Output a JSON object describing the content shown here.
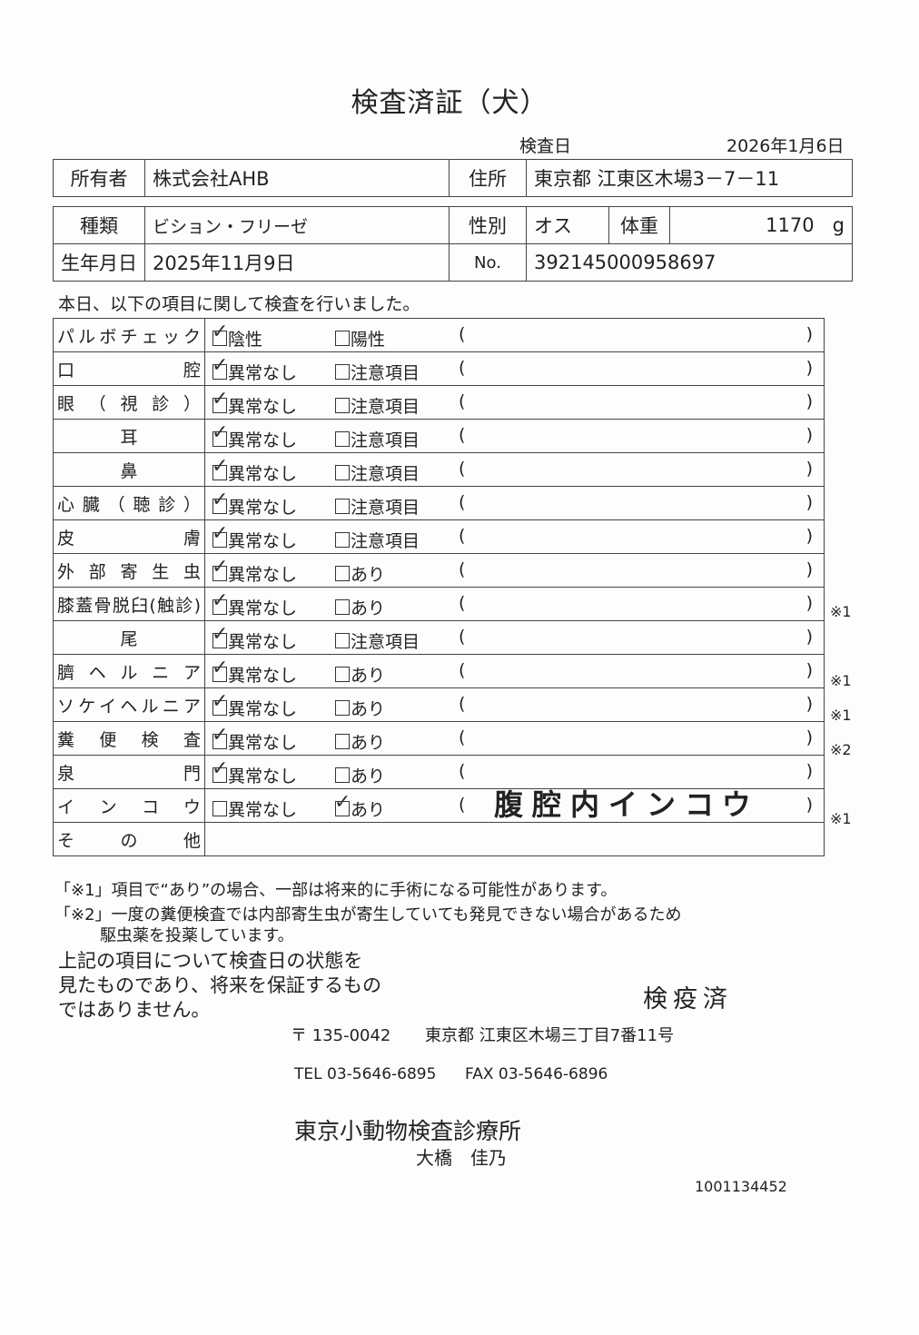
{
  "title": "検査済証（犬）",
  "exam_date": {
    "label": "検査日",
    "value": "2026年1月6日"
  },
  "owner": {
    "label": "所有者",
    "value": "株式会社AHB",
    "address_label": "住所",
    "address": "東京都 江東区木場3－7－11"
  },
  "animal": {
    "breed_label": "種類",
    "breed": "ビション・フリーゼ",
    "sex_label": "性別",
    "sex": "オス",
    "weight_label": "体重",
    "weight": "1170",
    "weight_unit": "g",
    "dob_label": "生年月日",
    "dob": "2025年11月9日",
    "no_label": "No.",
    "no": "392145000958697"
  },
  "intro": "本日、以下の項目に関して検査を行いました。",
  "items": [
    {
      "label": "パルボチェック",
      "opt1": "陰性",
      "opt2": "陽性",
      "checked": 1,
      "remark": "",
      "note": ""
    },
    {
      "label": "口腔",
      "opt1": "異常なし",
      "opt2": "注意項目",
      "checked": 1,
      "remark": "",
      "note": ""
    },
    {
      "label": "眼（視診）",
      "opt1": "異常なし",
      "opt2": "注意項目",
      "checked": 1,
      "remark": "",
      "note": ""
    },
    {
      "label": "耳",
      "opt1": "異常なし",
      "opt2": "注意項目",
      "checked": 1,
      "remark": "",
      "note": ""
    },
    {
      "label": "鼻",
      "opt1": "異常なし",
      "opt2": "注意項目",
      "checked": 1,
      "remark": "",
      "note": ""
    },
    {
      "label": "心臓（聴診）",
      "opt1": "異常なし",
      "opt2": "注意項目",
      "checked": 1,
      "remark": "",
      "note": ""
    },
    {
      "label": "皮膚",
      "opt1": "異常なし",
      "opt2": "注意項目",
      "checked": 1,
      "remark": "",
      "note": ""
    },
    {
      "label": "外部寄生虫",
      "opt1": "異常なし",
      "opt2": "あり",
      "checked": 1,
      "remark": "",
      "note": ""
    },
    {
      "label": "膝蓋骨脱臼(触診)",
      "opt1": "異常なし",
      "opt2": "あり",
      "checked": 1,
      "remark": "",
      "note": "※1"
    },
    {
      "label": "尾",
      "opt1": "異常なし",
      "opt2": "注意項目",
      "checked": 1,
      "remark": "",
      "note": ""
    },
    {
      "label": "臍ヘルニア",
      "opt1": "異常なし",
      "opt2": "あり",
      "checked": 1,
      "remark": "",
      "note": "※1"
    },
    {
      "label": "ソケイヘルニア",
      "opt1": "異常なし",
      "opt2": "あり",
      "checked": 1,
      "remark": "",
      "note": "※1"
    },
    {
      "label": "糞便検査",
      "opt1": "異常なし",
      "opt2": "あり",
      "checked": 1,
      "remark": "",
      "note": "※2"
    },
    {
      "label": "泉門",
      "opt1": "異常なし",
      "opt2": "あり",
      "checked": 1,
      "remark": "",
      "note": ""
    },
    {
      "label": "インコウ",
      "opt1": "異常なし",
      "opt2": "あり",
      "checked": 2,
      "remark": "腹腔内インコウ",
      "note": "※1"
    }
  ],
  "other_label": "その他",
  "footnote1": "「※1」項目で“あり”の場合、一部は将来的に手術になる可能性があります。",
  "footnote2a": "「※2」一度の糞便検査では内部寄生虫が寄生していても発見できない場合があるため",
  "footnote2b": "駆虫薬を投薬しています。",
  "disclaimer": [
    "上記の項目について検査日の状態を",
    "見たものであり、将来を保証するもの",
    "ではありません。"
  ],
  "stamp": "検疫済",
  "postal": "〒 135-0042",
  "clinic_address": "東京都 江東区木場三丁目7番11号",
  "tel": "TEL 03-5646-6895",
  "fax": "FAX 03-5646-6896",
  "clinic": "東京小動物検査診療所",
  "doctor": "大橋　佳乃",
  "doc_number": "1001134452"
}
